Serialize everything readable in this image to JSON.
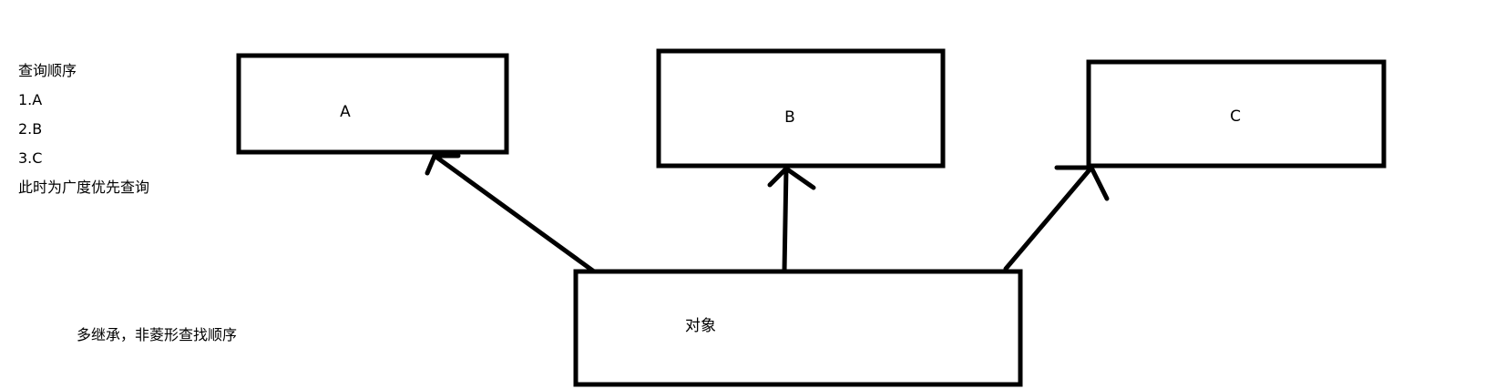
{
  "notes": {
    "title": "查询顺序",
    "steps": [
      "1.A",
      "2.B",
      "3.C"
    ],
    "conclusion": "此时为广度优先查询"
  },
  "caption": "多继承，非菱形查找顺序",
  "nodes": {
    "a": "A",
    "b": "B",
    "c": "C",
    "object": "对象"
  }
}
